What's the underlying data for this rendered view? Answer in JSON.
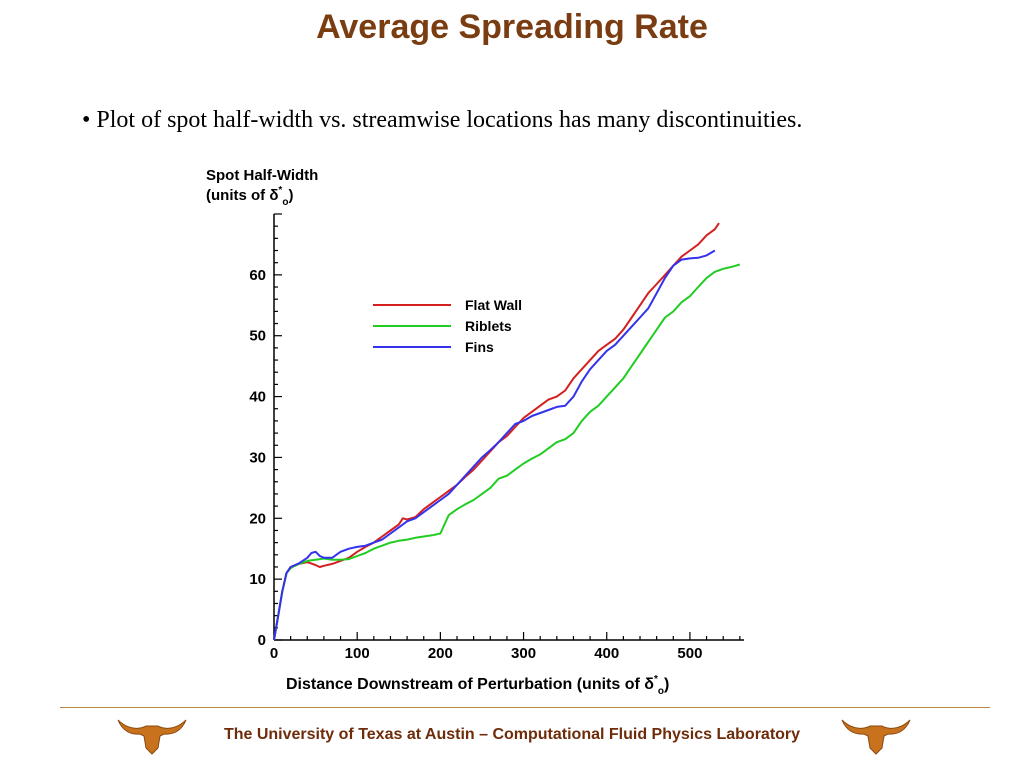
{
  "slide": {
    "title": "Average Spreading Rate",
    "bullet_marker": "•",
    "bullet": "Plot of spot half-width vs. streamwise locations has many discontinuities.",
    "footer": "The University of Texas at Austin – Computational Fluid Physics Laboratory",
    "logo_left": "longhorn-logo",
    "logo_right": "longhorn-logo",
    "colors": {
      "title": "#7a3d12",
      "footer_text": "#6e2c0a",
      "footer_rule": "#b5873a",
      "logo": "#c8721e"
    }
  },
  "chart_data": {
    "type": "line",
    "title": "",
    "ylabel_line1": "Spot Half-Width",
    "ylabel_line2": "(units of δ",
    "ylabel_delta_sup": "*",
    "ylabel_delta_sub": "o",
    "ylabel_close": ")",
    "xlabel": "Distance Downstream of Perturbation (units of δ",
    "xlabel_delta_sup": "*",
    "xlabel_delta_sub": "o",
    "xlabel_close": ")",
    "xlim": [
      0,
      565
    ],
    "ylim": [
      0,
      70
    ],
    "xticks": [
      0,
      100,
      200,
      300,
      400,
      500
    ],
    "yticks": [
      0,
      10,
      20,
      30,
      40,
      50,
      60
    ],
    "grid": false,
    "legend_position": "upper-left (inside plot)",
    "series": [
      {
        "name": "Flat Wall",
        "color": "#d42020",
        "points": [
          [
            0,
            0
          ],
          [
            5,
            4
          ],
          [
            10,
            8
          ],
          [
            15,
            11
          ],
          [
            20,
            12
          ],
          [
            25,
            12.2
          ],
          [
            30,
            12.5
          ],
          [
            40,
            12.8
          ],
          [
            50,
            12.3
          ],
          [
            55,
            12
          ],
          [
            60,
            12.2
          ],
          [
            70,
            12.5
          ],
          [
            80,
            13
          ],
          [
            90,
            13.5
          ],
          [
            100,
            14.5
          ],
          [
            110,
            15.3
          ],
          [
            120,
            16
          ],
          [
            130,
            17
          ],
          [
            140,
            18
          ],
          [
            150,
            19
          ],
          [
            155,
            20
          ],
          [
            160,
            19.8
          ],
          [
            170,
            20.2
          ],
          [
            180,
            21.5
          ],
          [
            190,
            22.5
          ],
          [
            200,
            23.5
          ],
          [
            210,
            24.5
          ],
          [
            220,
            25.5
          ],
          [
            230,
            26.8
          ],
          [
            240,
            28
          ],
          [
            250,
            29.5
          ],
          [
            260,
            31
          ],
          [
            270,
            32.5
          ],
          [
            280,
            33.5
          ],
          [
            290,
            35
          ],
          [
            300,
            36.5
          ],
          [
            310,
            37.5
          ],
          [
            320,
            38.5
          ],
          [
            330,
            39.5
          ],
          [
            340,
            40
          ],
          [
            350,
            41
          ],
          [
            360,
            43
          ],
          [
            370,
            44.5
          ],
          [
            380,
            46
          ],
          [
            390,
            47.5
          ],
          [
            400,
            48.5
          ],
          [
            410,
            49.5
          ],
          [
            420,
            51
          ],
          [
            430,
            53
          ],
          [
            440,
            55
          ],
          [
            450,
            57
          ],
          [
            460,
            58.5
          ],
          [
            470,
            60
          ],
          [
            480,
            61.5
          ],
          [
            490,
            63
          ],
          [
            500,
            64
          ],
          [
            510,
            65
          ],
          [
            520,
            66.5
          ],
          [
            530,
            67.5
          ],
          [
            535,
            68.5
          ]
        ]
      },
      {
        "name": "Riblets",
        "color": "#22cc22",
        "points": [
          [
            0,
            0
          ],
          [
            5,
            4
          ],
          [
            10,
            8
          ],
          [
            15,
            11
          ],
          [
            20,
            11.8
          ],
          [
            25,
            12.2
          ],
          [
            30,
            12.5
          ],
          [
            40,
            13
          ],
          [
            50,
            13.2
          ],
          [
            60,
            13.4
          ],
          [
            70,
            13.2
          ],
          [
            80,
            13.2
          ],
          [
            90,
            13.3
          ],
          [
            100,
            13.8
          ],
          [
            110,
            14.3
          ],
          [
            120,
            15
          ],
          [
            130,
            15.5
          ],
          [
            140,
            16
          ],
          [
            150,
            16.3
          ],
          [
            160,
            16.5
          ],
          [
            170,
            16.8
          ],
          [
            180,
            17
          ],
          [
            190,
            17.2
          ],
          [
            200,
            17.5
          ],
          [
            205,
            19
          ],
          [
            210,
            20.5
          ],
          [
            220,
            21.5
          ],
          [
            230,
            22.3
          ],
          [
            240,
            23
          ],
          [
            250,
            24
          ],
          [
            260,
            25
          ],
          [
            270,
            26.5
          ],
          [
            280,
            27
          ],
          [
            290,
            28
          ],
          [
            300,
            29
          ],
          [
            310,
            29.8
          ],
          [
            320,
            30.5
          ],
          [
            330,
            31.5
          ],
          [
            340,
            32.5
          ],
          [
            350,
            33
          ],
          [
            360,
            34
          ],
          [
            370,
            36
          ],
          [
            380,
            37.5
          ],
          [
            390,
            38.5
          ],
          [
            400,
            40
          ],
          [
            410,
            41.5
          ],
          [
            420,
            43
          ],
          [
            430,
            45
          ],
          [
            440,
            47
          ],
          [
            450,
            49
          ],
          [
            460,
            51
          ],
          [
            470,
            53
          ],
          [
            480,
            54
          ],
          [
            490,
            55.5
          ],
          [
            500,
            56.5
          ],
          [
            510,
            58
          ],
          [
            520,
            59.5
          ],
          [
            530,
            60.5
          ],
          [
            540,
            61
          ],
          [
            550,
            61.3
          ],
          [
            560,
            61.7
          ]
        ]
      },
      {
        "name": "Fins",
        "color": "#3333ee",
        "points": [
          [
            0,
            0
          ],
          [
            5,
            4
          ],
          [
            10,
            8
          ],
          [
            15,
            11
          ],
          [
            20,
            12
          ],
          [
            30,
            12.6
          ],
          [
            40,
            13.5
          ],
          [
            45,
            14.3
          ],
          [
            50,
            14.5
          ],
          [
            55,
            13.8
          ],
          [
            60,
            13.5
          ],
          [
            70,
            13.5
          ],
          [
            80,
            14.5
          ],
          [
            90,
            15
          ],
          [
            100,
            15.3
          ],
          [
            110,
            15.5
          ],
          [
            120,
            16
          ],
          [
            130,
            16.5
          ],
          [
            140,
            17.5
          ],
          [
            150,
            18.5
          ],
          [
            160,
            19.5
          ],
          [
            170,
            20
          ],
          [
            180,
            21
          ],
          [
            190,
            22
          ],
          [
            200,
            23
          ],
          [
            210,
            24
          ],
          [
            220,
            25.5
          ],
          [
            230,
            27
          ],
          [
            240,
            28.5
          ],
          [
            250,
            30
          ],
          [
            260,
            31.2
          ],
          [
            270,
            32.5
          ],
          [
            280,
            34
          ],
          [
            290,
            35.5
          ],
          [
            300,
            36
          ],
          [
            310,
            36.8
          ],
          [
            320,
            37.3
          ],
          [
            330,
            37.8
          ],
          [
            340,
            38.3
          ],
          [
            350,
            38.5
          ],
          [
            360,
            40
          ],
          [
            370,
            42.5
          ],
          [
            380,
            44.5
          ],
          [
            390,
            46
          ],
          [
            400,
            47.5
          ],
          [
            410,
            48.5
          ],
          [
            420,
            50
          ],
          [
            430,
            51.5
          ],
          [
            440,
            53
          ],
          [
            450,
            54.5
          ],
          [
            460,
            57
          ],
          [
            470,
            59.5
          ],
          [
            480,
            61.5
          ],
          [
            490,
            62.5
          ],
          [
            500,
            62.7
          ],
          [
            510,
            62.8
          ],
          [
            520,
            63.2
          ],
          [
            530,
            64
          ]
        ]
      }
    ]
  }
}
